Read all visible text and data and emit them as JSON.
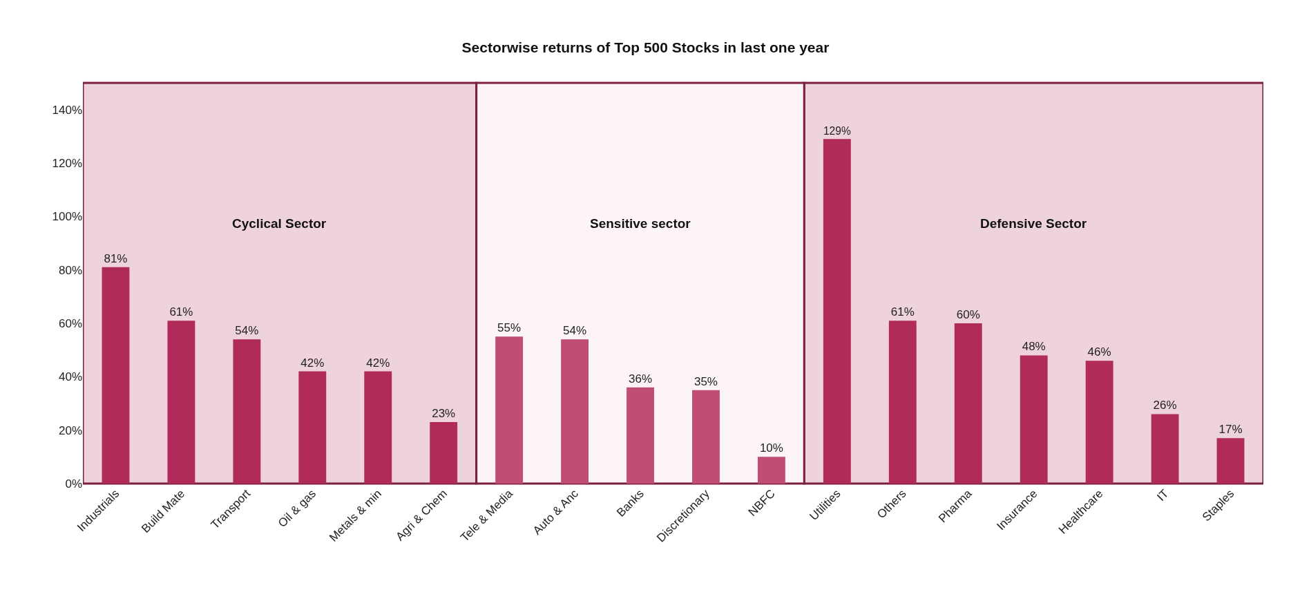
{
  "chart_data": {
    "type": "bar",
    "title": "Sectorwise returns of Top 500 Stocks in last one year",
    "categories": [
      "Industrials",
      "Build Mate",
      "Transport",
      "Oil & gas",
      "Metals & min",
      "Agri & Chem",
      "Tele & Media",
      "Auto & Anc",
      "Banks",
      "Discretionary",
      "NBFC",
      "Utilities",
      "Others",
      "Pharma",
      "Insurance",
      "Healthcare",
      "IT",
      "Staples"
    ],
    "values": [
      81,
      61,
      54,
      42,
      42,
      23,
      55,
      54,
      36,
      35,
      10,
      129,
      61,
      60,
      48,
      46,
      26,
      17
    ],
    "value_labels": [
      "81%",
      "61%",
      "54%",
      "42%",
      "42%",
      "23%",
      "55%",
      "54%",
      "36%",
      "35%",
      "10%",
      "129%",
      "61%",
      "60%",
      "48%",
      "46%",
      "26%",
      "17%"
    ],
    "colors": [
      "#b02a5a",
      "#b02a5a",
      "#b02a5a",
      "#b02a5a",
      "#b02a5a",
      "#b02a5a",
      "#c14d76",
      "#c14d76",
      "#c14d76",
      "#c14d76",
      "#c14d76",
      "#b02a5a",
      "#b02a5a",
      "#b02a5a",
      "#b02a5a",
      "#b02a5a",
      "#b02a5a",
      "#b02a5a"
    ],
    "ylim": [
      0,
      150
    ],
    "yticks": [
      {
        "value": 0,
        "label": "0%"
      },
      {
        "value": 20,
        "label": "20%"
      },
      {
        "value": 40,
        "label": "40%"
      },
      {
        "value": 60,
        "label": "60%"
      },
      {
        "value": 80,
        "label": "80%"
      },
      {
        "value": 100,
        "label": "100%"
      },
      {
        "value": 120,
        "label": "120%"
      },
      {
        "value": 140,
        "label": "140%"
      }
    ],
    "bands": [
      {
        "axis": "x",
        "from": "Industrials",
        "to": "Agri & Chem",
        "label": "Cyclical Sector",
        "color": "#eed2dd"
      },
      {
        "axis": "x",
        "from": "Tele & Media",
        "to": "NBFC",
        "label": "Sensitive sector",
        "color": "#fcf4f7"
      },
      {
        "axis": "x",
        "from": "Utilities",
        "to": "Staples",
        "label": "Defensive Sector",
        "color": "#eed2dd"
      }
    ],
    "grid": false,
    "legend": false
  }
}
